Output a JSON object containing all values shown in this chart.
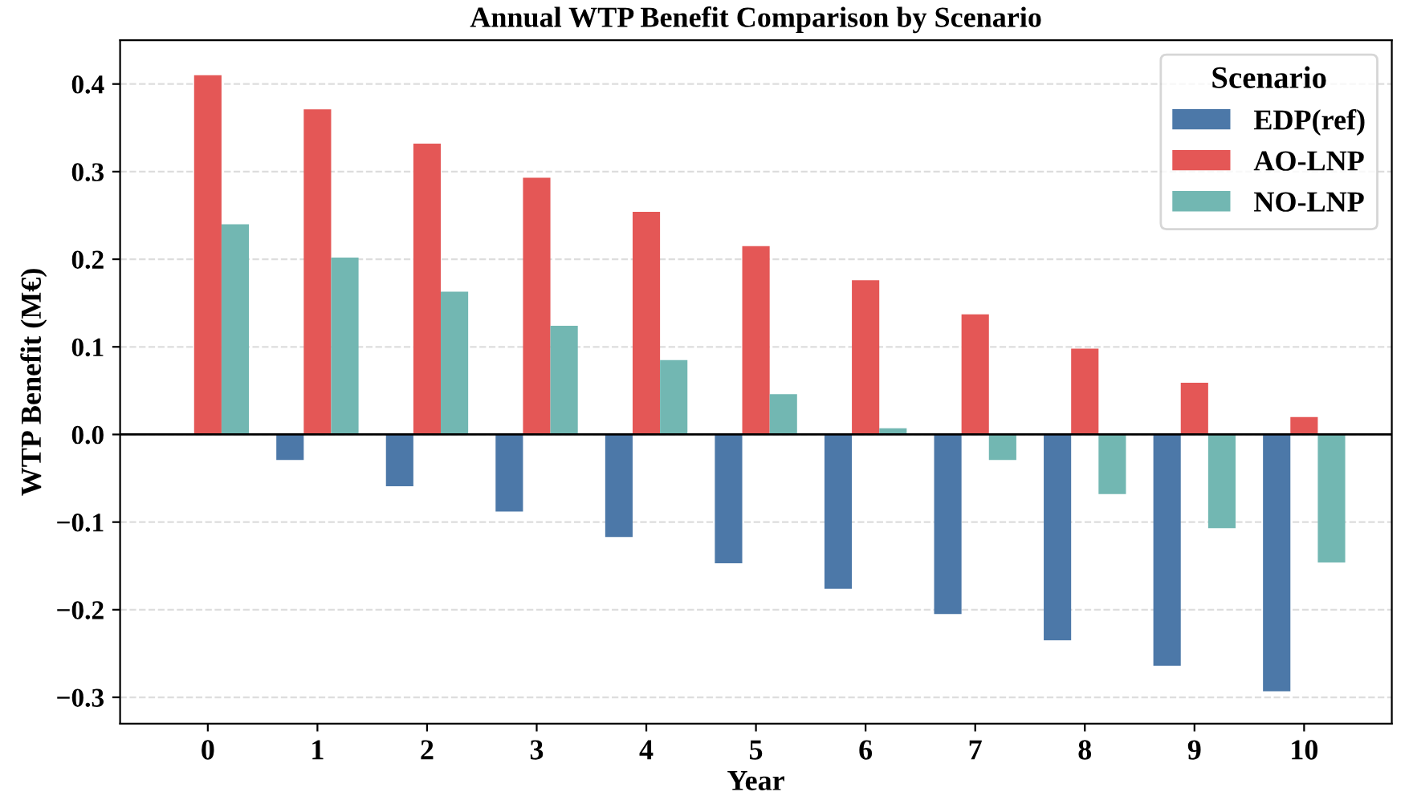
{
  "chart_data": {
    "type": "bar",
    "title": "Annual WTP Benefit Comparison by Scenario",
    "xlabel": "Year",
    "ylabel": "WTP Benefit (M€)",
    "legend_title": "Scenario",
    "categories": [
      "0",
      "1",
      "2",
      "3",
      "4",
      "5",
      "6",
      "7",
      "8",
      "9",
      "10"
    ],
    "series": [
      {
        "name": "EDP(ref)",
        "color": "#4c78a8",
        "values": [
          0,
          -0.029,
          -0.059,
          -0.088,
          -0.117,
          -0.147,
          -0.176,
          -0.205,
          -0.235,
          -0.264,
          -0.293
        ]
      },
      {
        "name": "AO-LNP",
        "color": "#e45756",
        "values": [
          0.41,
          0.371,
          0.332,
          0.293,
          0.254,
          0.215,
          0.176,
          0.137,
          0.098,
          0.059,
          0.02
        ]
      },
      {
        "name": "NO-LNP",
        "color": "#72b7b2",
        "values": [
          0.24,
          0.202,
          0.163,
          0.124,
          0.085,
          0.046,
          0.007,
          -0.029,
          -0.068,
          -0.107,
          -0.146
        ]
      }
    ],
    "ylim": [
      -0.33,
      0.45
    ],
    "yticks": [
      {
        "value": -0.3,
        "label": "−0.3"
      },
      {
        "value": -0.2,
        "label": "−0.2"
      },
      {
        "value": -0.1,
        "label": "−0.1"
      },
      {
        "value": 0,
        "label": "0.0"
      },
      0.1,
      0.2,
      0.3,
      0.4
    ],
    "ref_lines": [
      {
        "axis": "y",
        "value": 0,
        "color": "#000000",
        "line_style": "solid"
      }
    ],
    "grid": "y",
    "legend": "top right"
  }
}
